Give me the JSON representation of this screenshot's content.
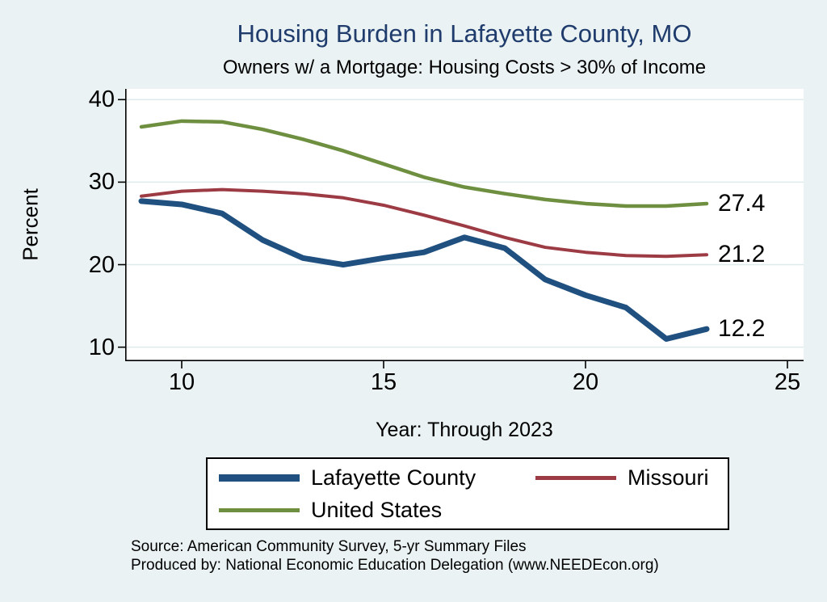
{
  "title": "Housing Burden in Lafayette County, MO",
  "subtitle": "Owners w/ a Mortgage: Housing Costs > 30% of Income",
  "colors": {
    "background": "#eaf2f3",
    "title": "#1f3c6d",
    "grid": "#dfeaec",
    "axis": "#000000",
    "lafayette": "#1f5080",
    "missouri": "#9d3b44",
    "united_states": "#6d8f3f"
  },
  "chart_data": {
    "type": "line",
    "title": "Housing Burden in Lafayette County, MO",
    "subtitle": "Owners w/ a Mortgage: Housing Costs > 30% of Income",
    "xlabel": "Year: Through 2023",
    "ylabel": "Percent",
    "x": [
      9,
      10,
      11,
      12,
      13,
      14,
      15,
      16,
      17,
      18,
      19,
      20,
      21,
      22,
      23
    ],
    "xticks": [
      10,
      15,
      20,
      25
    ],
    "yticks": [
      10,
      20,
      30,
      40
    ],
    "xlim": [
      8.6,
      25.4
    ],
    "ylim": [
      8.3,
      41.3
    ],
    "grid": "horizontal",
    "legend_position": "bottom",
    "series": [
      {
        "name": "Lafayette County",
        "color": "#1f5080",
        "width": 7,
        "end_label": "12.2",
        "values": [
          27.7,
          27.3,
          26.2,
          23.0,
          20.8,
          20.0,
          20.8,
          21.5,
          23.3,
          22.0,
          18.2,
          16.3,
          14.8,
          11.0,
          12.2
        ]
      },
      {
        "name": "Missouri",
        "color": "#9d3b44",
        "width": 4,
        "end_label": "21.2",
        "values": [
          28.3,
          28.9,
          29.1,
          28.9,
          28.6,
          28.1,
          27.2,
          26.0,
          24.7,
          23.3,
          22.1,
          21.5,
          21.1,
          21.0,
          21.2
        ]
      },
      {
        "name": "United States",
        "color": "#6d8f3f",
        "width": 4.5,
        "end_label": "27.4",
        "values": [
          36.7,
          37.4,
          37.3,
          36.4,
          35.2,
          33.8,
          32.2,
          30.6,
          29.4,
          28.6,
          27.9,
          27.4,
          27.1,
          27.1,
          27.4
        ]
      }
    ]
  },
  "legend": {
    "items": [
      {
        "label": "Lafayette County"
      },
      {
        "label": "Missouri"
      },
      {
        "label": "United States"
      }
    ]
  },
  "footer": {
    "source": "Source: American Community Survey, 5-yr Summary Files",
    "produced": "Produced by: National Economic Education Delegation (www.NEEDEcon.org)"
  }
}
